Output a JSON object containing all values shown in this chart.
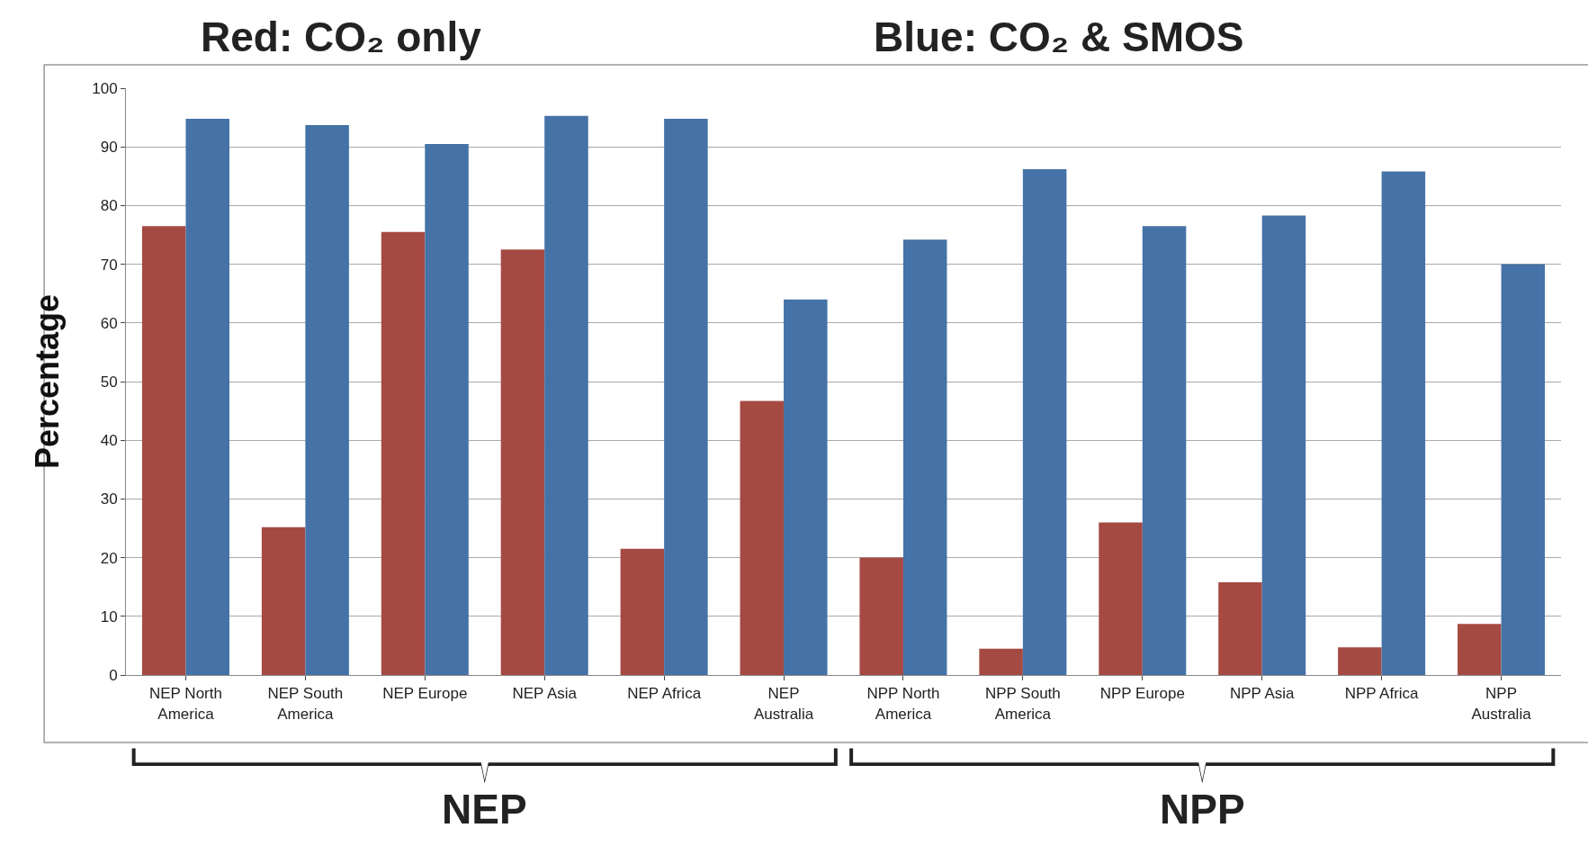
{
  "chart_data": {
    "type": "bar",
    "categories": [
      "NEP North America",
      "NEP South America",
      "NEP Europe",
      "NEP Asia",
      "NEP Africa",
      "NEP Australia",
      "NPP North America",
      "NPP South America",
      "NPP Europe",
      "NPP Asia",
      "NPP Africa",
      "NPP Australia"
    ],
    "series": [
      {
        "color": "#a54a43",
        "values": [
          76.5,
          25.2,
          75.5,
          72.5,
          21.5,
          46.7,
          20,
          4.5,
          26,
          15.8,
          4.7,
          8.7
        ]
      },
      {
        "color": "#4572a7",
        "values": [
          94.8,
          93.7,
          90.5,
          95.3,
          94.8,
          64,
          74.2,
          86.2,
          76.5,
          78.3,
          85.8,
          70
        ]
      }
    ],
    "ylabel": "Percentage",
    "ylim": [
      0,
      100
    ],
    "yticks": [
      0,
      10,
      20,
      30,
      40,
      50,
      60,
      70,
      80,
      90,
      100
    ],
    "grid": "y",
    "legend": false,
    "annotations": [
      "Red: CO₂ only",
      "Blue: CO₂ & SMOS",
      "NEP",
      "NPP"
    ]
  }
}
